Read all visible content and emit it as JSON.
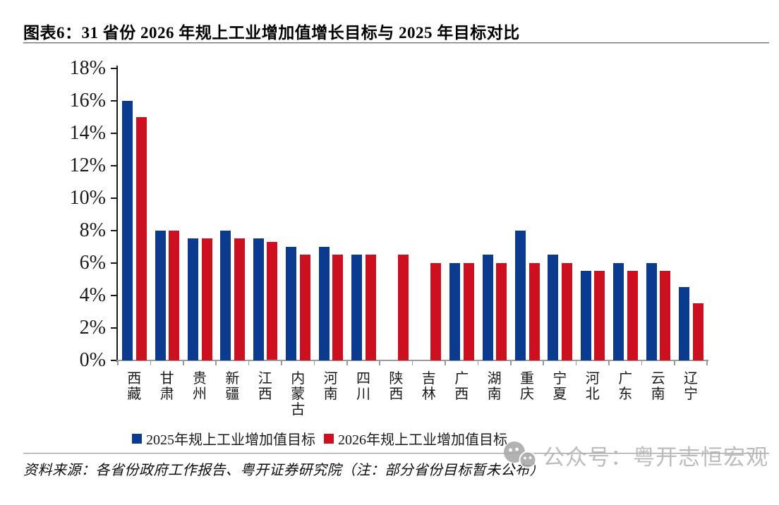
{
  "header": {
    "title": "图表6：31 省份 2026 年规上工业增加值增长目标与 2025 年目标对比"
  },
  "chart_data": {
    "type": "bar",
    "title": "图表6：31 省份 2026 年规上工业增加值增长目标与 2025 年目标对比",
    "categories": [
      "西藏",
      "甘肃",
      "贵州",
      "新疆",
      "江西",
      "内蒙古",
      "河南",
      "四川",
      "陕西",
      "吉林",
      "广西",
      "湖南",
      "重庆",
      "宁夏",
      "河北",
      "广东",
      "云南",
      "辽宁"
    ],
    "series": [
      {
        "name": "2025年规上工业增加值目标",
        "color": "#0b3b8f",
        "values": [
          16,
          8,
          7.5,
          8,
          7.5,
          7,
          7,
          6.5,
          null,
          null,
          6,
          6.5,
          8,
          6.5,
          5.5,
          6,
          6,
          4.5
        ]
      },
      {
        "name": "2026年规上工业增加值目标",
        "color": "#cc1020",
        "values": [
          15,
          8,
          7.5,
          7.5,
          7.3,
          6.5,
          6.5,
          6.5,
          6.5,
          6,
          6,
          6,
          6,
          6,
          5.5,
          5.5,
          5.5,
          3.5
        ]
      }
    ],
    "xlabel": "",
    "ylabel": "",
    "ylim": [
      0,
      18
    ],
    "ytick_step": 2,
    "ytick_suffix": "%",
    "grid": false,
    "legend_position": "bottom"
  },
  "legend": {
    "items": [
      {
        "label": "2025年规上工业增加值目标",
        "color": "#0b3b8f"
      },
      {
        "label": "2026年规上工业增加值目标",
        "color": "#cc1020"
      }
    ]
  },
  "footer": {
    "source_note": "资料来源：各省份政府工作报告、粤开证券研究院（注：部分省份目标暂未公布）",
    "watermark_text": "公众号：粤开志恒宏观"
  },
  "colors": {
    "bar_blue": "#0b3b8f",
    "bar_red": "#cc1020",
    "y_axis": "#1a1a1a",
    "x_axis": "#9a9a9a",
    "watermark_gray": "#b3b3b3"
  }
}
